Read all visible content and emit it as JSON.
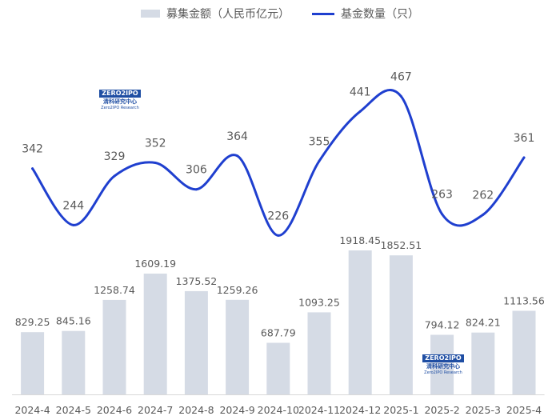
{
  "legend": {
    "bar_label": "募集金额（人民币亿元）",
    "line_label": "基金数量（只）"
  },
  "watermark": {
    "brand": "ZERO2IPO",
    "cn": "清科研究中心",
    "en": "Zero2IPO Research"
  },
  "colors": {
    "bar": "#d5dbe5",
    "line": "#1f3fcf",
    "label": "#595959"
  },
  "chart_data": {
    "type": "bar",
    "categories": [
      "2024-4",
      "2024-5",
      "2024-6",
      "2024-7",
      "2024-8",
      "2024-9",
      "2024-10",
      "2024-11",
      "2024-12",
      "2025-1",
      "2025-2",
      "2025-3",
      "2025-4"
    ],
    "series": [
      {
        "name": "募集金额（人民币亿元）",
        "type": "bar",
        "values": [
          829.25,
          845.16,
          1258.74,
          1609.19,
          1375.52,
          1259.26,
          687.79,
          1093.25,
          1918.45,
          1852.51,
          794.12,
          824.21,
          1113.56
        ]
      },
      {
        "name": "基金数量（只）",
        "type": "line",
        "values": [
          342,
          244,
          329,
          352,
          306,
          364,
          226,
          355,
          441,
          467,
          263,
          262,
          361
        ]
      }
    ],
    "bar_value_labels": [
      "829.25",
      "845.16",
      "1258.74",
      "1609.19",
      "1375.52",
      "1259.26",
      "687.79",
      "1093.25",
      "1918.45",
      "1852.51",
      "794.12",
      "824.21",
      "1113.56"
    ],
    "line_value_labels": [
      "342",
      "244",
      "329",
      "352",
      "306",
      "364",
      "226",
      "355",
      "441",
      "467",
      "263",
      "262",
      "361"
    ],
    "legend_position": "top",
    "grid": false
  }
}
